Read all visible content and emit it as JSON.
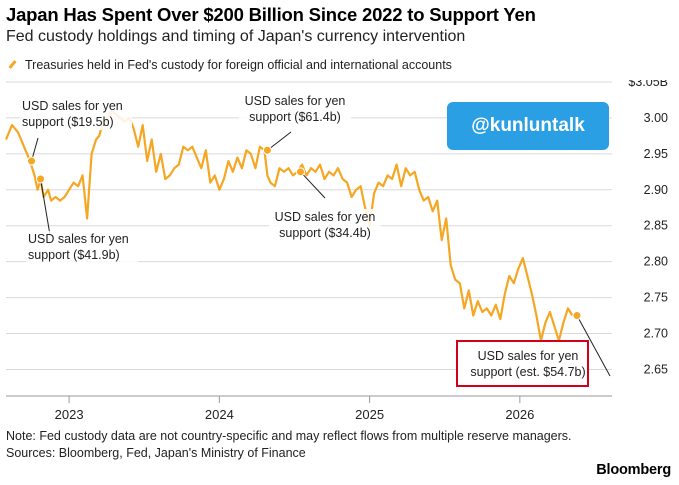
{
  "title": "Japan Has Spent Over $200 Billion Since 2022 to Support Yen",
  "subtitle": "Fed custody holdings and timing of Japan's currency intervention",
  "legend": "Treasuries held in Fed's custody for foreign official and international accounts",
  "badge": "@kunluntalk",
  "note": "Note: Fed custody data are not country-specific and may reflect flows from multiple reserve managers.",
  "sources": "Sources: Bloomberg, Fed, Japan's Ministry of Finance",
  "brand": "Bloomberg",
  "colors": {
    "line": "#f5a623",
    "highlight_box": "#d0021b",
    "badge": "#2b9fe3"
  },
  "chart_data": {
    "type": "line",
    "ylim": [
      2.62,
      3.05
    ],
    "y_ticks": [
      "$3.05B",
      "3.00",
      "2.95",
      "2.90",
      "2.85",
      "2.80",
      "2.75",
      "2.70",
      "2.65"
    ],
    "y_tick_values": [
      3.05,
      3.0,
      2.95,
      2.9,
      2.85,
      2.8,
      2.75,
      2.7,
      2.65
    ],
    "x_ticks": [
      "2023",
      "2024",
      "2025",
      "2026"
    ],
    "x_tick_values": [
      2023.0,
      2024.0,
      2025.0,
      2026.0
    ],
    "xlim": [
      2022.58,
      2026.6
    ],
    "grid": true,
    "series": [
      {
        "name": "Treasuries held in Fed's custody for foreign official and international accounts",
        "x": [
          2022.58,
          2022.62,
          2022.66,
          2022.7,
          2022.74,
          2022.77,
          2022.79,
          2022.81,
          2022.83,
          2022.86,
          2022.88,
          2022.91,
          2022.94,
          2022.97,
          2023.0,
          2023.03,
          2023.06,
          2023.09,
          2023.12,
          2023.15,
          2023.18,
          2023.2,
          2023.22,
          2023.25,
          2023.28,
          2023.31,
          2023.34,
          2023.37,
          2023.4,
          2023.43,
          2023.46,
          2023.49,
          2023.52,
          2023.55,
          2023.58,
          2023.61,
          2023.64,
          2023.67,
          2023.7,
          2023.73,
          2023.76,
          2023.79,
          2023.82,
          2023.85,
          2023.88,
          2023.91,
          2023.94,
          2023.97,
          2024.0,
          2024.03,
          2024.06,
          2024.09,
          2024.12,
          2024.15,
          2024.18,
          2024.21,
          2024.24,
          2024.27,
          2024.3,
          2024.32,
          2024.34,
          2024.37,
          2024.4,
          2024.43,
          2024.46,
          2024.49,
          2024.52,
          2024.55,
          2024.58,
          2024.61,
          2024.64,
          2024.67,
          2024.7,
          2024.73,
          2024.76,
          2024.79,
          2024.82,
          2024.85,
          2024.88,
          2024.91,
          2024.94,
          2024.97,
          2025.0,
          2025.03,
          2025.06,
          2025.09,
          2025.12,
          2025.15,
          2025.18,
          2025.21,
          2025.24,
          2025.27,
          2025.3,
          2025.33,
          2025.36,
          2025.39,
          2025.42,
          2025.45,
          2025.48,
          2025.51,
          2025.54,
          2025.57,
          2025.6,
          2025.63,
          2025.66,
          2025.69,
          2025.72,
          2025.75,
          2025.78,
          2025.81,
          2025.84,
          2025.87,
          2025.9,
          2025.93,
          2025.96,
          2025.99,
          2026.02,
          2026.05,
          2026.08,
          2026.11,
          2026.14,
          2026.17,
          2026.2,
          2026.23,
          2026.26,
          2026.29,
          2026.32,
          2026.35
        ],
        "values": [
          2.97,
          2.99,
          2.98,
          2.96,
          2.94,
          2.92,
          2.9,
          2.915,
          2.89,
          2.9,
          2.885,
          2.89,
          2.885,
          2.89,
          2.9,
          2.91,
          2.905,
          2.92,
          2.86,
          2.95,
          2.97,
          2.975,
          2.99,
          3.0,
          3.01,
          3.005,
          3.0,
          2.995,
          3.0,
          2.985,
          2.96,
          2.99,
          2.94,
          2.97,
          2.925,
          2.95,
          2.915,
          2.92,
          2.93,
          2.935,
          2.96,
          2.955,
          2.96,
          2.945,
          2.93,
          2.955,
          2.91,
          2.92,
          2.9,
          2.915,
          2.94,
          2.925,
          2.945,
          2.93,
          2.955,
          2.95,
          2.93,
          2.96,
          2.955,
          2.92,
          2.91,
          2.905,
          2.93,
          2.925,
          2.93,
          2.92,
          2.925,
          2.935,
          2.92,
          2.93,
          2.925,
          2.935,
          2.915,
          2.925,
          2.92,
          2.93,
          2.915,
          2.91,
          2.89,
          2.9,
          2.905,
          2.875,
          2.85,
          2.895,
          2.91,
          2.905,
          2.92,
          2.915,
          2.935,
          2.905,
          2.93,
          2.92,
          2.925,
          2.9,
          2.885,
          2.89,
          2.87,
          2.885,
          2.83,
          2.86,
          2.795,
          2.775,
          2.77,
          2.735,
          2.76,
          2.725,
          2.745,
          2.73,
          2.735,
          2.725,
          2.74,
          2.72,
          2.755,
          2.78,
          2.77,
          2.79,
          2.805,
          2.78,
          2.755,
          2.725,
          2.69,
          2.715,
          2.73,
          2.71,
          2.69,
          2.715,
          2.735,
          2.725
        ]
      }
    ],
    "annotations": [
      {
        "text": "USD sales for yen|support ($19.5b)",
        "x": 2022.75,
        "y": 2.94
      },
      {
        "text": "USD sales for yen|support ($41.9b)",
        "x": 2022.81,
        "y": 2.915
      },
      {
        "text": "USD sales for yen|support ($61.4b)",
        "x": 2024.32,
        "y": 2.955
      },
      {
        "text": "USD sales for yen|support ($34.4b)",
        "x": 2024.54,
        "y": 2.925
      },
      {
        "text": "USD sales for yen|support (est. $54.7b)",
        "x": 2026.38,
        "y": 2.725
      }
    ]
  }
}
